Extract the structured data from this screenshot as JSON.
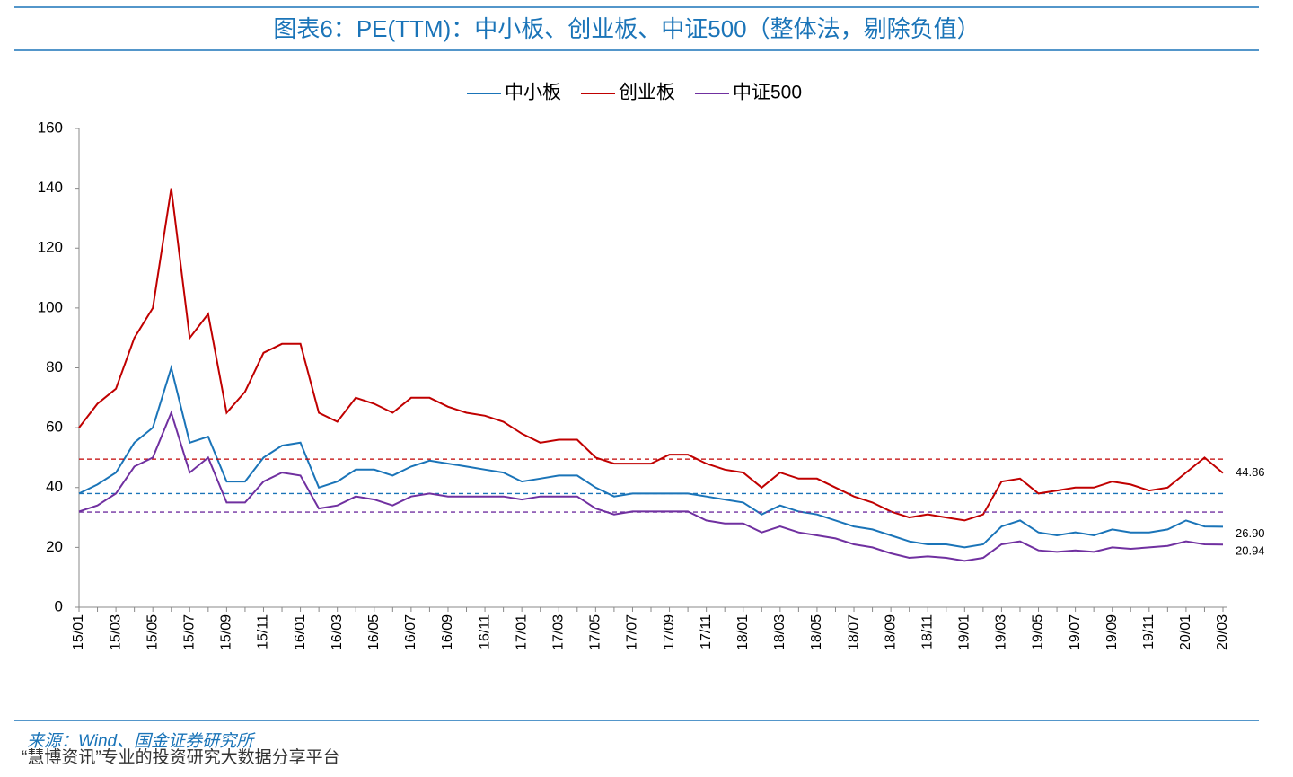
{
  "chart_data": {
    "type": "line",
    "title": "图表6：PE(TTM)：中小板、创业板、中证500（整体法，剔除负值）",
    "source": "来源：Wind、国金证券研究所",
    "watermark": "“慧博资讯”专业的投资研究大数据分享平台",
    "categories": [
      "15/01",
      null,
      "15/03",
      null,
      "15/05",
      null,
      "15/07",
      null,
      "15/09",
      null,
      "15/11",
      null,
      "16/01",
      null,
      "16/03",
      null,
      "16/05",
      null,
      "16/07",
      null,
      "16/09",
      null,
      "16/11",
      null,
      "17/01",
      null,
      "17/03",
      null,
      "17/05",
      null,
      "17/07",
      null,
      "17/09",
      null,
      "17/11",
      null,
      "18/01",
      null,
      "18/03",
      null,
      "18/05",
      null,
      "18/07",
      null,
      "18/09",
      null,
      "18/11",
      null,
      "19/01",
      null,
      "19/03",
      null,
      "19/05",
      null,
      "19/07",
      null,
      "19/09",
      null,
      "19/11",
      null,
      "20/01",
      null,
      "20/03"
    ],
    "ylim": [
      0,
      160
    ],
    "yticks": [
      0,
      20,
      40,
      60,
      80,
      100,
      120,
      140,
      160
    ],
    "grid": false,
    "series": [
      {
        "name": "中小板",
        "color": "#1a74b8",
        "reference": 38,
        "last_label": {
          "value": 26.9,
          "label": "26.90"
        },
        "values": [
          38,
          41,
          45,
          55,
          60,
          80,
          55,
          57,
          42,
          42,
          50,
          54,
          55,
          40,
          42,
          46,
          46,
          44,
          47,
          49,
          48,
          47,
          46,
          45,
          42,
          43,
          44,
          44,
          40,
          37,
          38,
          38,
          38,
          38,
          37,
          36,
          35,
          31,
          34,
          32,
          31,
          29,
          27,
          26,
          24,
          22,
          21,
          21,
          20,
          21,
          27,
          29,
          25,
          24,
          25,
          24,
          26,
          25,
          25,
          26,
          29,
          27,
          26.9
        ]
      },
      {
        "name": "创业板",
        "color": "#c00000",
        "reference": 49.5,
        "last_label": {
          "value": 44.86,
          "label": "44.86"
        },
        "values": [
          60,
          68,
          73,
          90,
          100,
          140,
          90,
          98,
          65,
          72,
          85,
          88,
          88,
          65,
          62,
          70,
          68,
          65,
          70,
          70,
          67,
          65,
          64,
          62,
          58,
          55,
          56,
          56,
          50,
          48,
          48,
          48,
          51,
          51,
          48,
          46,
          45,
          40,
          45,
          43,
          43,
          40,
          37,
          35,
          32,
          30,
          31,
          30,
          29,
          31,
          42,
          43,
          38,
          39,
          40,
          40,
          42,
          41,
          39,
          40,
          45,
          50,
          44.86
        ]
      },
      {
        "name": "中证500",
        "color": "#7030a0",
        "reference": 31.8,
        "last_label": {
          "value": 20.94,
          "label": "20.94"
        },
        "values": [
          32,
          34,
          38,
          47,
          50,
          65,
          45,
          50,
          35,
          35,
          42,
          45,
          44,
          33,
          34,
          37,
          36,
          34,
          37,
          38,
          37,
          37,
          37,
          37,
          36,
          37,
          37,
          37,
          33,
          31,
          32,
          32,
          32,
          32,
          29,
          28,
          28,
          25,
          27,
          25,
          24,
          23,
          21,
          20,
          18,
          16.5,
          17,
          16.5,
          15.5,
          16.5,
          21,
          22,
          19,
          18.5,
          19,
          18.5,
          20,
          19.5,
          20,
          20.5,
          22,
          21,
          20.94
        ]
      }
    ]
  }
}
